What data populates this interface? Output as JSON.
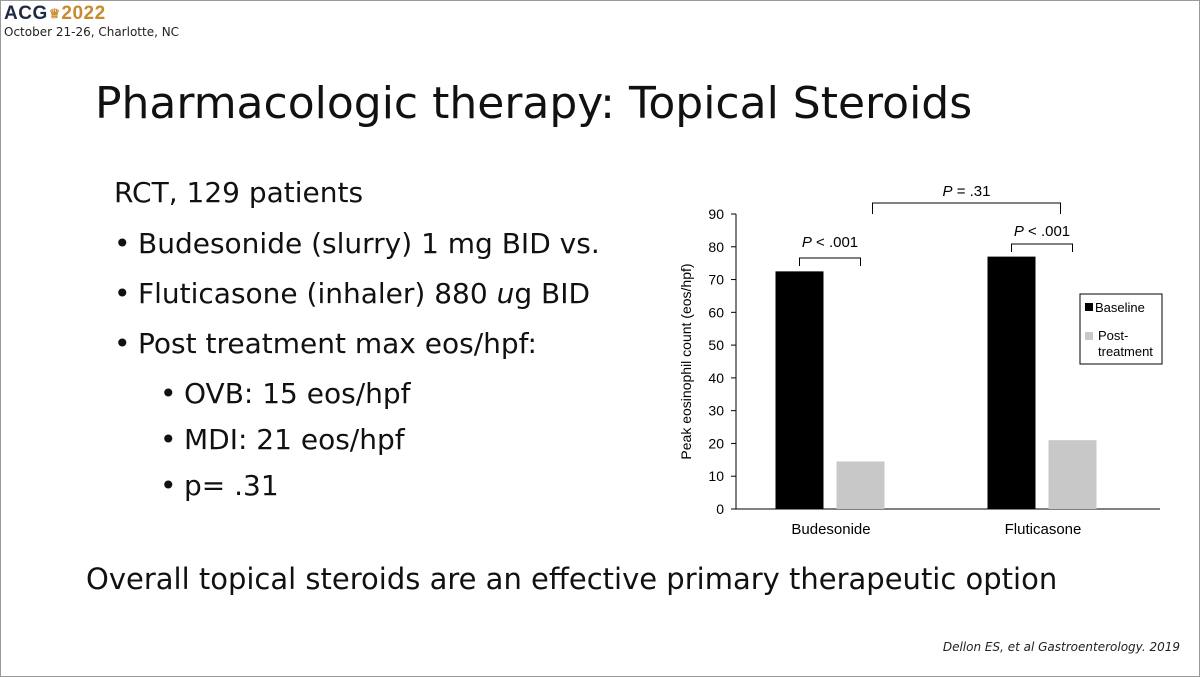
{
  "header": {
    "logo_acg": "ACG",
    "logo_year": "2022",
    "conference": "October 21-26, Charlotte, NC"
  },
  "slide": {
    "title": "Pharmacologic therapy: Topical Steroids",
    "intro": "RCT, 129 patients",
    "bullets": [
      {
        "level": 1,
        "text": "Budesonide (slurry) 1 mg BID vs."
      },
      {
        "level": 1,
        "text": "Fluticasone (inhaler) 880 ug BID"
      },
      {
        "level": 1,
        "text": "Post treatment max eos/hpf:"
      },
      {
        "level": 2,
        "text": "OVB: 15 eos/hpf"
      },
      {
        "level": 2,
        "text": "MDI: 21 eos/hpf"
      },
      {
        "level": 2,
        "text": "p= .31"
      }
    ],
    "conclusion": "Overall topical steroids are an effective primary therapeutic option",
    "citation": "Dellon ES, et al Gastroenterology. 2019"
  },
  "chart_data": {
    "type": "bar",
    "categories": [
      "Budesonide",
      "Fluticasone"
    ],
    "series": [
      {
        "name": "Baseline",
        "values": [
          72.5,
          77
        ],
        "color": "#000000"
      },
      {
        "name": "Post-treatment",
        "values": [
          14.5,
          21
        ],
        "color": "#c8c8c8"
      }
    ],
    "ylabel": "Peak eosinophil count (eos/hpf)",
    "ylim": [
      0,
      90
    ],
    "yticks": [
      0,
      10,
      20,
      30,
      40,
      50,
      60,
      70,
      80,
      90
    ],
    "legend_position": "right",
    "legend_labels": [
      "Baseline",
      "Post-",
      "treatment"
    ],
    "annotations": [
      {
        "label": "P < .001",
        "between": "Budesonide baseline vs post-treatment"
      },
      {
        "label": "P < .001",
        "between": "Fluticasone baseline vs post-treatment"
      },
      {
        "label": "P = .31",
        "between": "Budesonide post-treatment vs Fluticasone post-treatment"
      }
    ]
  }
}
